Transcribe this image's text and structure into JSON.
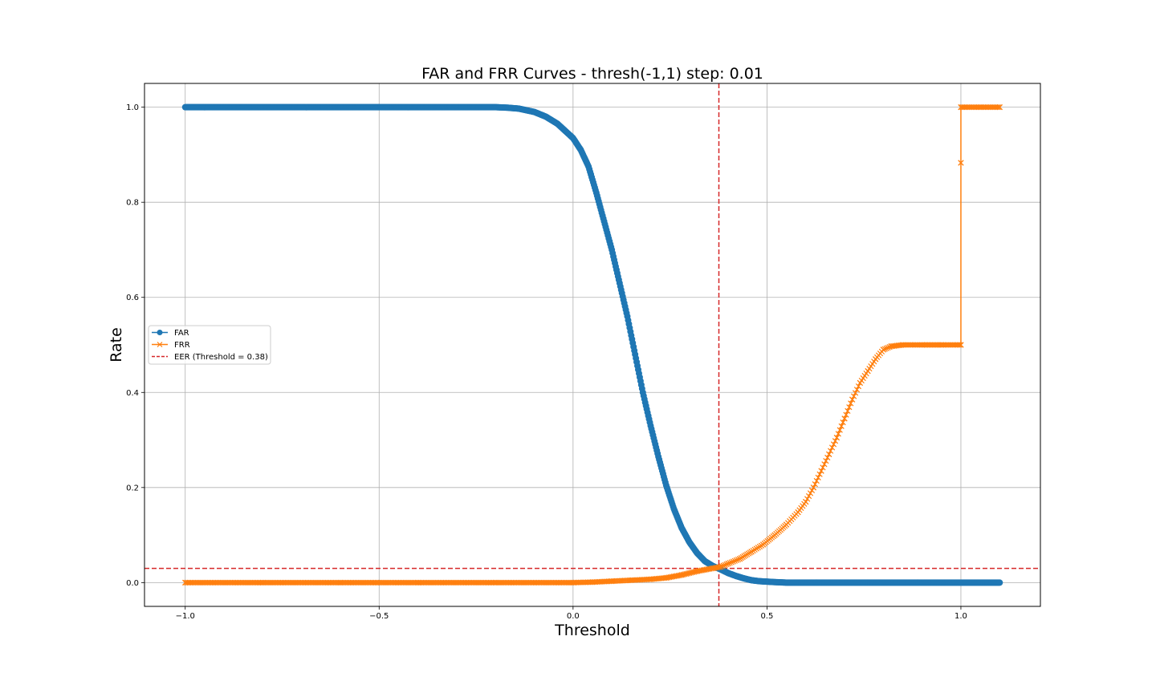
{
  "chart_data": {
    "type": "line",
    "title": "FAR and FRR Curves - thresh(-1,1) step: 0.01",
    "xlabel": "Threshold",
    "ylabel": "Rate",
    "xlim": [
      -1.105,
      1.205
    ],
    "ylim": [
      -0.05,
      1.05
    ],
    "xticks": [
      -1.0,
      -0.5,
      0.0,
      0.5,
      1.0
    ],
    "xtick_labels": [
      "−1.0",
      "−0.5",
      "0.0",
      "0.5",
      "1.0"
    ],
    "yticks": [
      0.0,
      0.2,
      0.4,
      0.6,
      0.8,
      1.0
    ],
    "ytick_labels": [
      "0.0",
      "0.2",
      "0.4",
      "0.6",
      "0.8",
      "1.0"
    ],
    "grid": true,
    "legend_position": "center-left",
    "series": [
      {
        "name": "FAR",
        "color": "#1f77b4",
        "marker": "circle",
        "points": [
          [
            -1.0,
            1.0
          ],
          [
            -0.9,
            1.0
          ],
          [
            -0.8,
            1.0
          ],
          [
            -0.7,
            1.0
          ],
          [
            -0.6,
            1.0
          ],
          [
            -0.5,
            1.0
          ],
          [
            -0.4,
            1.0
          ],
          [
            -0.3,
            1.0
          ],
          [
            -0.2,
            1.0
          ],
          [
            -0.17,
            0.999
          ],
          [
            -0.14,
            0.997
          ],
          [
            -0.1,
            0.99
          ],
          [
            -0.07,
            0.98
          ],
          [
            -0.04,
            0.965
          ],
          [
            -0.02,
            0.95
          ],
          [
            0.0,
            0.935
          ],
          [
            0.02,
            0.91
          ],
          [
            0.04,
            0.875
          ],
          [
            0.06,
            0.82
          ],
          [
            0.08,
            0.76
          ],
          [
            0.1,
            0.7
          ],
          [
            0.12,
            0.63
          ],
          [
            0.14,
            0.56
          ],
          [
            0.16,
            0.48
          ],
          [
            0.18,
            0.4
          ],
          [
            0.2,
            0.33
          ],
          [
            0.22,
            0.265
          ],
          [
            0.24,
            0.205
          ],
          [
            0.26,
            0.155
          ],
          [
            0.28,
            0.115
          ],
          [
            0.3,
            0.085
          ],
          [
            0.32,
            0.062
          ],
          [
            0.34,
            0.045
          ],
          [
            0.36,
            0.035
          ],
          [
            0.38,
            0.028
          ],
          [
            0.4,
            0.02
          ],
          [
            0.42,
            0.014
          ],
          [
            0.44,
            0.009
          ],
          [
            0.46,
            0.005
          ],
          [
            0.48,
            0.003
          ],
          [
            0.5,
            0.002
          ],
          [
            0.52,
            0.001
          ],
          [
            0.55,
            0.0
          ],
          [
            0.6,
            0.0
          ],
          [
            0.7,
            0.0
          ],
          [
            0.8,
            0.0
          ],
          [
            0.9,
            0.0
          ],
          [
            1.0,
            0.0
          ],
          [
            1.1,
            0.0
          ]
        ]
      },
      {
        "name": "FRR",
        "color": "#ff7f0e",
        "marker": "x",
        "points": [
          [
            -1.0,
            0.0
          ],
          [
            -0.8,
            0.0
          ],
          [
            -0.6,
            0.0
          ],
          [
            -0.4,
            0.0
          ],
          [
            -0.2,
            0.0
          ],
          [
            0.0,
            0.0
          ],
          [
            0.05,
            0.001
          ],
          [
            0.1,
            0.003
          ],
          [
            0.15,
            0.005
          ],
          [
            0.2,
            0.007
          ],
          [
            0.24,
            0.01
          ],
          [
            0.28,
            0.016
          ],
          [
            0.32,
            0.024
          ],
          [
            0.36,
            0.03
          ],
          [
            0.38,
            0.033
          ],
          [
            0.4,
            0.04
          ],
          [
            0.43,
            0.05
          ],
          [
            0.46,
            0.065
          ],
          [
            0.49,
            0.08
          ],
          [
            0.52,
            0.1
          ],
          [
            0.55,
            0.122
          ],
          [
            0.58,
            0.148
          ],
          [
            0.6,
            0.17
          ],
          [
            0.62,
            0.2
          ],
          [
            0.64,
            0.235
          ],
          [
            0.66,
            0.27
          ],
          [
            0.68,
            0.305
          ],
          [
            0.7,
            0.345
          ],
          [
            0.72,
            0.385
          ],
          [
            0.74,
            0.42
          ],
          [
            0.76,
            0.445
          ],
          [
            0.78,
            0.47
          ],
          [
            0.8,
            0.49
          ],
          [
            0.82,
            0.497
          ],
          [
            0.85,
            0.5
          ],
          [
            0.9,
            0.5
          ],
          [
            0.95,
            0.5
          ],
          [
            1.0,
            0.5
          ],
          [
            1.0,
            0.883
          ],
          [
            1.0,
            1.0
          ],
          [
            1.05,
            1.0
          ],
          [
            1.1,
            1.0
          ]
        ]
      }
    ],
    "reference_lines": {
      "legend_label": "EER (Threshold = 0.38)",
      "color": "#d62728",
      "style": "dashed",
      "vertical_x": 0.376,
      "horizontal_y": 0.03
    }
  }
}
